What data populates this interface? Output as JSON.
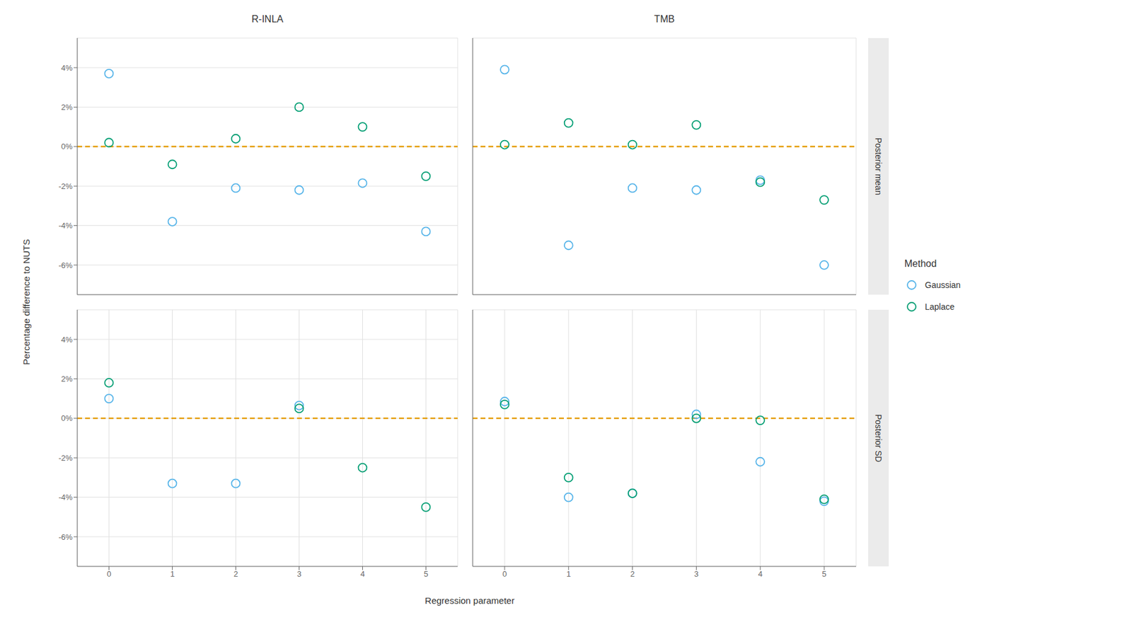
{
  "chart_data": {
    "type": "scatter",
    "x_label": "Regression parameter",
    "y_label": "Percentage difference to NUTS",
    "legend_title": "Method",
    "columns": [
      "R-INLA",
      "TMB"
    ],
    "rows": [
      "Posterior mean",
      "Posterior SD"
    ],
    "x": [
      0,
      1,
      2,
      3,
      4,
      5
    ],
    "xlim": [
      -0.5,
      5.5
    ],
    "xticks": [
      0,
      1,
      2,
      3,
      4,
      5
    ],
    "ylim": [
      -7.5,
      5.5
    ],
    "yticks": [
      {
        "value": -6,
        "label": "-6%"
      },
      {
        "value": -4,
        "label": "-4%"
      },
      {
        "value": -2,
        "label": "-2%"
      },
      {
        "value": 0,
        "label": "0%"
      },
      {
        "value": 2,
        "label": "2%"
      },
      {
        "value": 4,
        "label": "4%"
      }
    ],
    "grid": true,
    "reference_line": {
      "value": 0,
      "color": "#E69F00",
      "line_style": "dashed"
    },
    "series": [
      {
        "name": "Gaussian",
        "color": "#56B4E9",
        "marker": "open circle"
      },
      {
        "name": "Laplace",
        "color": "#009E73",
        "marker": "open circle"
      }
    ],
    "panels": [
      [
        [
          [
            3.7,
            -3.8,
            -2.1,
            -2.2,
            -1.85,
            -4.3
          ],
          [
            0.2,
            -0.9,
            0.4,
            2.0,
            1.0,
            -1.5
          ]
        ],
        [
          [
            3.9,
            -5.0,
            -2.1,
            -2.2,
            -1.7,
            -6.0
          ],
          [
            0.1,
            1.2,
            0.1,
            1.1,
            -1.8,
            -2.7
          ]
        ]
      ],
      [
        [
          [
            1.0,
            -3.3,
            -3.3,
            0.65,
            null,
            null
          ],
          [
            1.8,
            null,
            null,
            0.5,
            -2.5,
            -4.5
          ]
        ],
        [
          [
            0.85,
            -4.0,
            -3.8,
            0.2,
            -2.2,
            -4.2
          ],
          [
            0.7,
            -3.0,
            -3.8,
            0.0,
            -0.1,
            -4.1
          ]
        ]
      ]
    ]
  }
}
